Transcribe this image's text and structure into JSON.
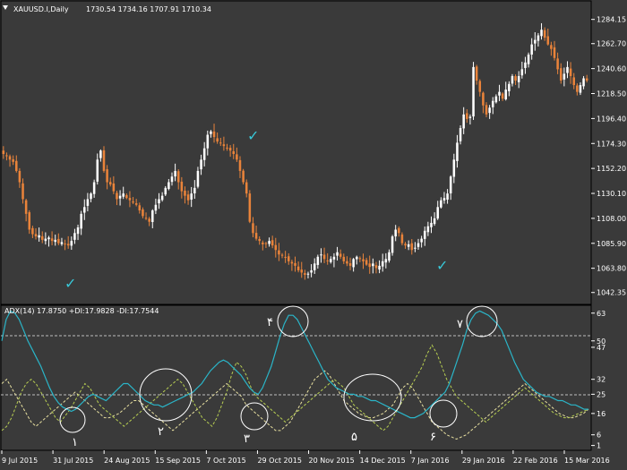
{
  "chart_data": [
    {
      "type": "candlestick",
      "title": "XAUUSD.I,Daily",
      "ohlc_label": "1730.54 1734.16 1707.91 1710.34",
      "ylim": [
        1035,
        1295
      ],
      "y_ticks": [
        "1284.15",
        "1262.70",
        "1240.60",
        "1218.50",
        "1196.40",
        "1174.30",
        "1152.20",
        "1130.10",
        "1108.00",
        "1085.90",
        "1063.80",
        "1042.35"
      ],
      "colors": {
        "up": "#ffffff",
        "down": "#e9833a",
        "background": "#3a3a3a",
        "grid_line": "#000000"
      },
      "closes": [
        1165,
        1163,
        1160,
        1158,
        1150,
        1140,
        1125,
        1112,
        1098,
        1094,
        1092,
        1093,
        1089,
        1090,
        1091,
        1088,
        1089,
        1086,
        1087,
        1085,
        1084,
        1088,
        1095,
        1100,
        1112,
        1118,
        1125,
        1130,
        1140,
        1160,
        1168,
        1150,
        1140,
        1138,
        1132,
        1125,
        1128,
        1130,
        1126,
        1124,
        1122,
        1120,
        1115,
        1110,
        1108,
        1105,
        1115,
        1120,
        1125,
        1128,
        1135,
        1140,
        1145,
        1150,
        1140,
        1132,
        1128,
        1124,
        1130,
        1135,
        1150,
        1160,
        1170,
        1182,
        1185,
        1180,
        1176,
        1175,
        1172,
        1170,
        1168,
        1165,
        1160,
        1150,
        1140,
        1130,
        1105,
        1095,
        1090,
        1088,
        1085,
        1086,
        1088,
        1084,
        1080,
        1076,
        1075,
        1073,
        1070,
        1068,
        1066,
        1062,
        1060,
        1058,
        1059,
        1062,
        1068,
        1074,
        1076,
        1072,
        1070,
        1072,
        1074,
        1078,
        1074,
        1070,
        1068,
        1066,
        1072,
        1074,
        1072,
        1070,
        1067,
        1065,
        1068,
        1064,
        1066,
        1070,
        1072,
        1078,
        1092,
        1098,
        1095,
        1086,
        1084,
        1085,
        1080,
        1082,
        1086,
        1090,
        1097,
        1101,
        1104,
        1108,
        1118,
        1124,
        1126,
        1130,
        1145,
        1160,
        1175,
        1188,
        1200,
        1196,
        1198,
        1242,
        1230,
        1220,
        1208,
        1200,
        1206,
        1212,
        1216,
        1220,
        1214,
        1222,
        1227,
        1234,
        1230,
        1234,
        1240,
        1246,
        1253,
        1262,
        1266,
        1270,
        1275,
        1268,
        1262,
        1258,
        1250,
        1240,
        1230,
        1236,
        1242,
        1234,
        1226,
        1220,
        1226,
        1232,
        1230
      ]
    },
    {
      "type": "line",
      "title": "ADX(14) 17.8750 +DI:17.9828 -DI:17.7544",
      "ylim": [
        0,
        65
      ],
      "y_ticks": [
        "63",
        "50",
        "47",
        "32",
        "25",
        "16",
        "6",
        "1"
      ],
      "levels": [
        50,
        25
      ],
      "x_labels": [
        "9 Jul 2015",
        "31 Jul 2015",
        "24 Aug 2015",
        "15 Sep 2015",
        "7 Oct 2015",
        "29 Oct 2015",
        "20 Nov 2015",
        "14 Dec 2015",
        "7 Jan 2016",
        "29 Jan 2016",
        "22 Feb 2016",
        "15 Mar 2016"
      ],
      "colors": {
        "adx": "#2ab5c8",
        "plus_di": "#b8cf52",
        "minus_di": "#e8e0a0"
      },
      "series": [
        {
          "values": [
            50,
            60,
            64,
            63,
            60,
            55,
            50,
            46,
            42,
            38,
            33,
            28,
            24,
            21,
            19,
            18,
            17,
            18,
            20,
            22,
            24,
            25,
            24,
            23,
            22,
            24,
            26,
            28,
            30,
            30,
            28,
            26,
            24,
            22,
            21,
            20,
            20,
            19,
            20,
            21,
            22,
            23,
            24,
            25,
            26,
            28,
            30,
            33,
            36,
            38,
            40,
            41,
            40,
            38,
            36,
            34,
            31,
            28,
            26,
            25,
            28,
            33,
            38,
            45,
            52,
            58,
            62,
            62,
            60,
            56,
            52,
            48,
            44,
            40,
            36,
            32,
            30,
            28,
            27,
            26,
            25,
            25,
            24,
            24,
            23,
            22,
            22,
            21,
            20,
            19,
            18,
            17,
            16,
            15,
            14,
            14,
            15,
            16,
            18,
            20,
            22,
            24,
            26,
            30,
            36,
            42,
            48,
            55,
            60,
            63,
            64,
            63,
            62,
            60,
            58,
            55,
            50,
            45,
            40,
            36,
            32,
            30,
            28,
            26,
            25,
            24,
            24,
            23,
            22,
            22,
            21,
            20,
            20,
            19,
            18,
            18
          ]
        },
        {
          "values": [
            8,
            10,
            14,
            20,
            26,
            30,
            32,
            30,
            26,
            22,
            18,
            14,
            12,
            15,
            18,
            22,
            26,
            30,
            28,
            24,
            20,
            18,
            16,
            14,
            12,
            10,
            12,
            14,
            16,
            18,
            20,
            22,
            24,
            26,
            28,
            30,
            32,
            30,
            26,
            22,
            18,
            14,
            12,
            10,
            14,
            20,
            26,
            34,
            40,
            38,
            34,
            28,
            24,
            22,
            20,
            18,
            16,
            14,
            12,
            14,
            16,
            18,
            20,
            22,
            24,
            26,
            28,
            30,
            32,
            30,
            28,
            24,
            20,
            18,
            16,
            14,
            12,
            10,
            8,
            10,
            14,
            18,
            22,
            26,
            30,
            34,
            38,
            44,
            48,
            44,
            38,
            32,
            28,
            24,
            22,
            20,
            18,
            16,
            14,
            12,
            14,
            16,
            18,
            20,
            22,
            24,
            26,
            28,
            26,
            24,
            22,
            20,
            18,
            16,
            15,
            14,
            14,
            15,
            16,
            17,
            18
          ]
        },
        {
          "values": [
            30,
            32,
            28,
            24,
            20,
            16,
            12,
            10,
            12,
            14,
            16,
            18,
            20,
            22,
            24,
            26,
            24,
            22,
            20,
            18,
            16,
            14,
            14,
            15,
            16,
            18,
            20,
            22,
            22,
            20,
            18,
            16,
            14,
            12,
            10,
            8,
            10,
            12,
            14,
            16,
            18,
            20,
            22,
            24,
            26,
            28,
            30,
            28,
            26,
            24,
            20,
            18,
            16,
            14,
            12,
            10,
            8,
            8,
            10,
            12,
            16,
            20,
            24,
            28,
            32,
            34,
            36,
            34,
            30,
            26,
            22,
            20,
            18,
            16,
            15,
            14,
            14,
            15,
            16,
            18,
            20,
            24,
            28,
            30,
            28,
            24,
            20,
            16,
            12,
            10,
            8,
            6,
            5,
            4,
            5,
            6,
            8,
            10,
            12,
            14,
            16,
            18,
            20,
            22,
            24,
            26,
            28,
            30,
            28,
            26,
            24,
            22,
            20,
            18,
            16,
            15,
            14,
            14,
            15,
            16,
            18
          ]
        }
      ]
    }
  ],
  "annotations": {
    "check_marks": [
      {
        "label": "✓",
        "color": "#38c8d8"
      },
      {
        "label": "✓",
        "color": "#38c8d8"
      },
      {
        "label": "✓",
        "color": "#38c8d8"
      }
    ],
    "circle_labels": [
      "۱",
      "۲",
      "۳",
      "۴",
      "۵",
      "۶",
      "۷"
    ]
  }
}
